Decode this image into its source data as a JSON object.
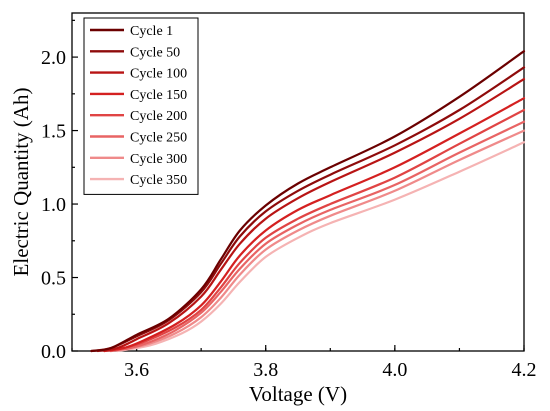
{
  "chart_data": {
    "type": "line",
    "title": "",
    "xlabel": "Voltage (V)",
    "ylabel": "Electric Quantity (Ah)",
    "xlim": [
      3.5,
      4.2
    ],
    "ylim": [
      0,
      2.3
    ],
    "xticks": [
      3.6,
      3.8,
      4.0,
      4.2
    ],
    "xtick_labels": [
      "3.6",
      "3.8",
      "4.0",
      "4.2"
    ],
    "yticks": [
      0.0,
      0.5,
      1.0,
      1.5,
      2.0
    ],
    "ytick_labels": [
      "0.0",
      "0.5",
      "1.0",
      "1.5",
      "2.0"
    ],
    "grid": false,
    "legend_position": "top-left",
    "series": [
      {
        "name": "Cycle 1",
        "color": "#6b0000",
        "x": [
          3.53,
          3.56,
          3.6,
          3.65,
          3.7,
          3.73,
          3.76,
          3.8,
          3.85,
          3.9,
          4.0,
          4.1,
          4.2
        ],
        "y": [
          0.0,
          0.02,
          0.11,
          0.22,
          0.42,
          0.62,
          0.82,
          0.99,
          1.14,
          1.25,
          1.46,
          1.73,
          2.04
        ]
      },
      {
        "name": "Cycle 50",
        "color": "#8e0b0b",
        "x": [
          3.53,
          3.56,
          3.6,
          3.65,
          3.7,
          3.73,
          3.76,
          3.8,
          3.85,
          3.9,
          4.0,
          4.1,
          4.2
        ],
        "y": [
          0.0,
          0.02,
          0.1,
          0.21,
          0.4,
          0.59,
          0.78,
          0.95,
          1.09,
          1.2,
          1.4,
          1.64,
          1.93
        ]
      },
      {
        "name": "Cycle 100",
        "color": "#b81414",
        "x": [
          3.54,
          3.57,
          3.6,
          3.65,
          3.7,
          3.73,
          3.76,
          3.8,
          3.85,
          3.9,
          4.0,
          4.1,
          4.2
        ],
        "y": [
          0.0,
          0.02,
          0.08,
          0.19,
          0.37,
          0.55,
          0.73,
          0.9,
          1.04,
          1.15,
          1.35,
          1.58,
          1.85
        ]
      },
      {
        "name": "Cycle 150",
        "color": "#d42020",
        "x": [
          3.55,
          3.58,
          3.61,
          3.66,
          3.7,
          3.73,
          3.76,
          3.8,
          3.85,
          3.9,
          4.0,
          4.1,
          4.2
        ],
        "y": [
          0.0,
          0.02,
          0.07,
          0.18,
          0.31,
          0.47,
          0.65,
          0.82,
          0.96,
          1.06,
          1.25,
          1.48,
          1.72
        ]
      },
      {
        "name": "Cycle 200",
        "color": "#e04444",
        "x": [
          3.55,
          3.58,
          3.61,
          3.66,
          3.7,
          3.73,
          3.76,
          3.8,
          3.85,
          3.9,
          4.0,
          4.1,
          4.2
        ],
        "y": [
          0.0,
          0.02,
          0.06,
          0.16,
          0.28,
          0.43,
          0.6,
          0.77,
          0.9,
          1.0,
          1.18,
          1.41,
          1.64
        ]
      },
      {
        "name": "Cycle 250",
        "color": "#e86464",
        "x": [
          3.56,
          3.59,
          3.62,
          3.66,
          3.7,
          3.73,
          3.76,
          3.8,
          3.85,
          3.9,
          4.0,
          4.1,
          4.2
        ],
        "y": [
          0.0,
          0.02,
          0.06,
          0.14,
          0.26,
          0.4,
          0.56,
          0.73,
          0.86,
          0.96,
          1.13,
          1.35,
          1.56
        ]
      },
      {
        "name": "Cycle 300",
        "color": "#ef8a8a",
        "x": [
          3.56,
          3.59,
          3.62,
          3.66,
          3.7,
          3.73,
          3.76,
          3.8,
          3.85,
          3.9,
          4.0,
          4.1,
          4.2
        ],
        "y": [
          0.0,
          0.02,
          0.05,
          0.12,
          0.23,
          0.36,
          0.52,
          0.69,
          0.82,
          0.92,
          1.09,
          1.3,
          1.5
        ]
      },
      {
        "name": "Cycle 350",
        "color": "#f5b3b3",
        "x": [
          3.57,
          3.6,
          3.63,
          3.67,
          3.7,
          3.73,
          3.76,
          3.8,
          3.85,
          3.9,
          4.0,
          4.1,
          4.2
        ],
        "y": [
          0.0,
          0.02,
          0.05,
          0.12,
          0.2,
          0.32,
          0.47,
          0.64,
          0.77,
          0.87,
          1.03,
          1.22,
          1.42
        ]
      }
    ]
  }
}
